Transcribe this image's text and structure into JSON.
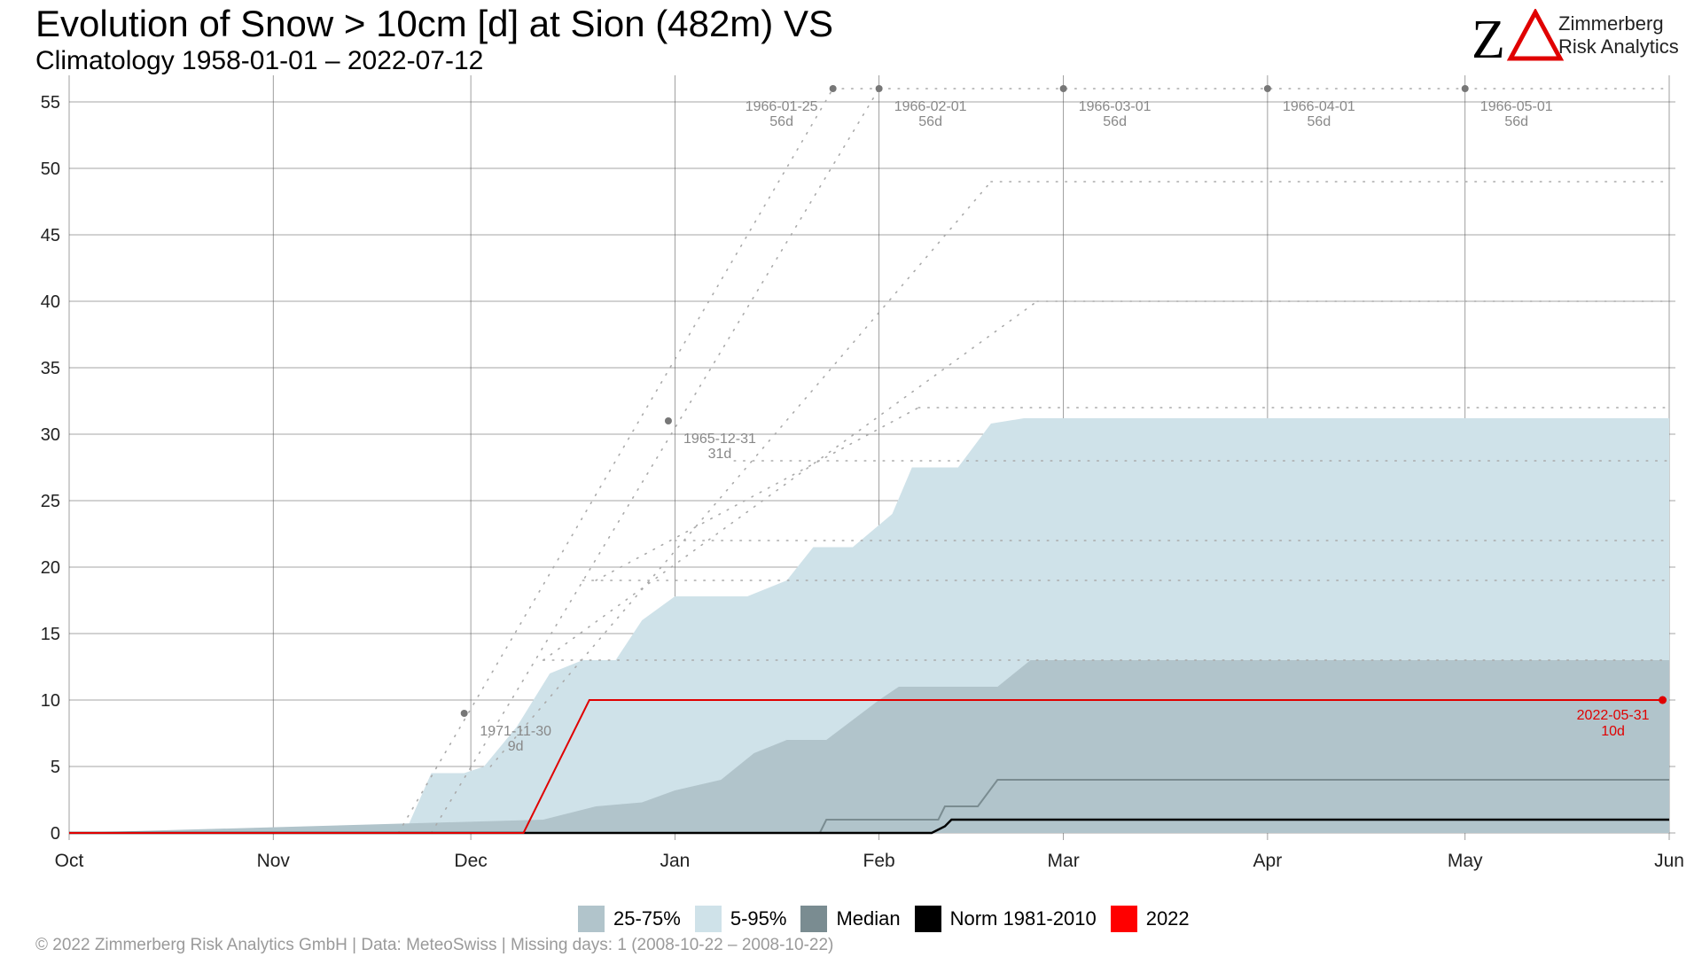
{
  "title": "Evolution of Snow > 10cm [d] at Sion (482m) VS",
  "subtitle": "Climatology 1958-01-01 – 2022-07-12",
  "logo": {
    "mark": "ZA",
    "line1": "Zimmerberg",
    "line2": "Risk Analytics"
  },
  "footer": "©  2022 Zimmerberg Risk Analytics GmbH | Data: MeteoSwiss | Missing days: 1 (2008-10-22 – 2008-10-22)",
  "colors": {
    "band_5_95": "#cfe2e9",
    "band_25_75": "#b1c4cb",
    "median": "#7a8c91",
    "norm": "#000000",
    "current": "#e00000",
    "annotation": "#888888",
    "grid": "#555555"
  },
  "legend": [
    {
      "label": "25-75%",
      "color": "#b1c4cb"
    },
    {
      "label": "5-95%",
      "color": "#cfe2e9"
    },
    {
      "label": "Median",
      "color": "#7a8c91"
    },
    {
      "label": "Norm 1981-2010",
      "color": "#000000"
    },
    {
      "label": "2022",
      "color": "#ff0000"
    }
  ],
  "chart_data": {
    "type": "area",
    "x_unit": "date (Oct 1 – Jun 1)",
    "x_ticks": [
      "Oct",
      "Nov",
      "Dec",
      "Jan",
      "Feb",
      "Mar",
      "Apr",
      "May",
      "Jun"
    ],
    "y_ticks": [
      0,
      5,
      10,
      15,
      20,
      25,
      30,
      35,
      40,
      45,
      50,
      55
    ],
    "ylim": [
      0,
      57
    ],
    "grid": true,
    "legend_position": "bottom",
    "band_5_95": {
      "x": [
        "Oct 1",
        "Nov 21",
        "Nov 25",
        "Nov 30",
        "Dec 3",
        "Dec 8",
        "Dec 13",
        "Dec 18",
        "Dec 23",
        "Dec 27",
        "Jan 1",
        "Jan 12",
        "Jan 18",
        "Jan 22",
        "Jan 28",
        "Feb 3",
        "Feb 6",
        "Feb 13",
        "Feb 18",
        "Feb 23",
        "Jun 1"
      ],
      "upper": [
        0,
        0,
        4.5,
        4.5,
        5,
        8,
        12,
        13,
        13,
        16,
        17.8,
        17.8,
        19,
        21.5,
        21.5,
        24,
        27.5,
        27.5,
        30.8,
        31.2,
        31.2
      ],
      "lower": [
        0,
        0,
        0,
        0,
        0,
        0,
        0,
        0,
        0,
        0,
        0,
        0,
        0,
        0,
        0,
        0,
        0,
        0,
        0,
        0,
        0
      ]
    },
    "band_25_75": {
      "x": [
        "Oct 1",
        "Dec 12",
        "Dec 16",
        "Dec 20",
        "Dec 27",
        "Jan 1",
        "Jan 8",
        "Jan 13",
        "Jan 18",
        "Jan 24",
        "Jan 28",
        "Feb 1",
        "Feb 4",
        "Feb 19",
        "Feb 24",
        "Jun 1"
      ],
      "upper": [
        0,
        1,
        1.5,
        2,
        2.3,
        3.2,
        4,
        6,
        7,
        7,
        8.5,
        10,
        11,
        11,
        13,
        13
      ],
      "lower": [
        0,
        0,
        0,
        0,
        0,
        0,
        0,
        0,
        0,
        0,
        0,
        0,
        0,
        0,
        0,
        0
      ]
    },
    "median": {
      "x": [
        "Oct 1",
        "Jan 23",
        "Jan 24",
        "Feb 10",
        "Feb 11",
        "Feb 16",
        "Feb 19",
        "Jun 1"
      ],
      "y": [
        0,
        0,
        1,
        1,
        2,
        2,
        4,
        4
      ]
    },
    "norm_1981_2010": {
      "x": [
        "Oct 1",
        "Feb 9",
        "Feb 11",
        "Feb 12",
        "Jun 1"
      ],
      "y": [
        0,
        0,
        0.5,
        1,
        1
      ]
    },
    "series_2022": {
      "name": "2022",
      "x": [
        "Oct 1",
        "Dec 9",
        "Dec 19",
        "May 31"
      ],
      "y": [
        0,
        0,
        10,
        10
      ],
      "end_label": {
        "date": "2022-05-31",
        "value": "10d"
      }
    },
    "record_annotations": [
      {
        "date": "1971-11-30",
        "value": "9d",
        "y": 9
      },
      {
        "date": "1965-12-31",
        "value": "31d",
        "y": 31
      },
      {
        "date": "1966-01-25",
        "value": "56d",
        "y": 56
      },
      {
        "date": "1966-02-01",
        "value": "56d",
        "y": 56
      },
      {
        "date": "1966-03-01",
        "value": "56d",
        "y": 56
      },
      {
        "date": "1966-04-01",
        "value": "56d",
        "y": 56
      },
      {
        "date": "1966-05-01",
        "value": "56d",
        "y": 56
      }
    ]
  }
}
